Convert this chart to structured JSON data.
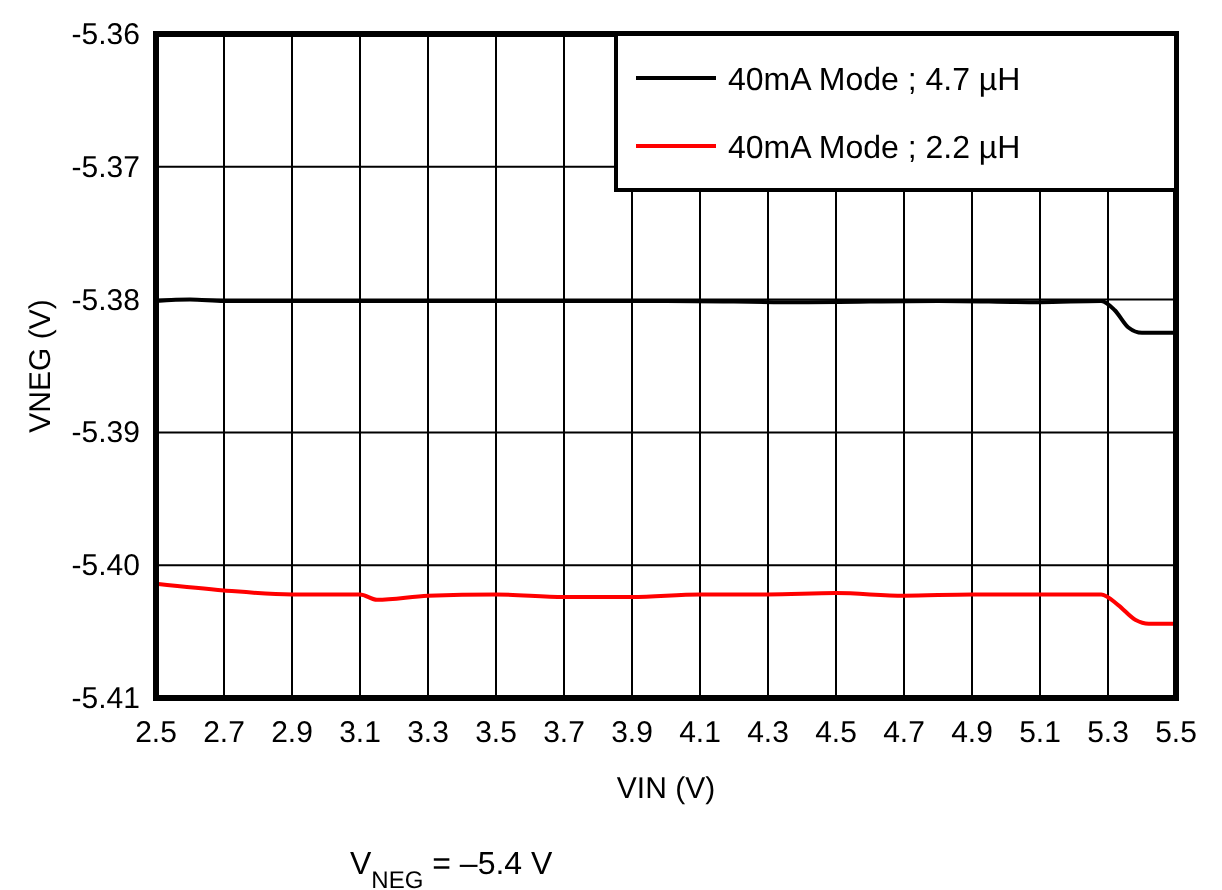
{
  "chart_data": {
    "type": "line",
    "xlabel": "VIN (V)",
    "ylabel": "VNEG (V)",
    "annotations": [
      "V$_{NEG}$ = –5.4 V"
    ],
    "xlim": [
      2.5,
      5.5
    ],
    "ylim": [
      -5.41,
      -5.36
    ],
    "xticks": [
      2.5,
      2.7,
      2.9,
      3.1,
      3.3,
      3.5,
      3.7,
      3.9,
      4.1,
      4.3,
      4.5,
      4.7,
      4.9,
      5.1,
      5.3,
      5.5
    ],
    "yticks": [
      -5.41,
      {
        "value": -5.4,
        "label": "-5.40"
      },
      -5.39,
      -5.38,
      -5.37,
      -5.36
    ],
    "grid": true,
    "legend": "top right",
    "line_style": "solid",
    "marker": "none",
    "series": [
      {
        "name": "40mA  Mode ; 4.7 µH",
        "color": "#000000",
        "x": [
          2.5,
          2.6,
          2.7,
          3.0,
          3.5,
          4.0,
          4.4,
          4.8,
          5.1,
          5.28,
          5.32,
          5.36,
          5.4,
          5.5
        ],
        "values": [
          -5.3801,
          -5.38,
          -5.3801,
          -5.3801,
          -5.3801,
          -5.3801,
          -5.3802,
          -5.3801,
          -5.3802,
          -5.3801,
          -5.3808,
          -5.3821,
          -5.3825,
          -5.3825
        ]
      },
      {
        "name": "40mA  Mode ; 2.2 µH",
        "color": "#ff0000",
        "x": [
          2.5,
          2.7,
          2.9,
          3.1,
          3.15,
          3.3,
          3.5,
          3.7,
          3.9,
          4.1,
          4.3,
          4.5,
          4.7,
          4.9,
          5.1,
          5.28,
          5.33,
          5.38,
          5.42,
          5.5
        ],
        "values": [
          -5.4014,
          -5.4019,
          -5.4022,
          -5.4022,
          -5.4026,
          -5.4023,
          -5.4022,
          -5.4024,
          -5.4024,
          -5.4022,
          -5.4022,
          -5.4021,
          -5.4023,
          -5.4022,
          -5.4022,
          -5.4022,
          -5.403,
          -5.4041,
          -5.4044,
          -5.4044
        ]
      }
    ]
  }
}
